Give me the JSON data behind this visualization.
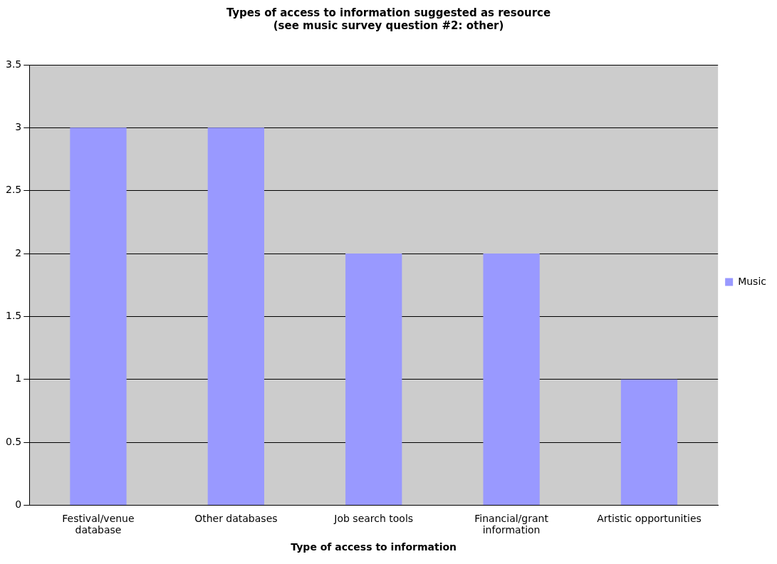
{
  "chart_data": {
    "type": "bar",
    "title": "Types of access to information suggested as resource\n(see music survey question #2: other)",
    "xlabel": "Type of access to information",
    "categories": [
      "Festival/venue database",
      "Other databases",
      "Job search tools",
      "Financial/grant information",
      "Artistic opportunities"
    ],
    "series": [
      {
        "name": "Music",
        "color": "#9999ff",
        "values": [
          3,
          3,
          2,
          2,
          1
        ]
      }
    ],
    "ylim": [
      0,
      3.5
    ],
    "yticks": [
      0,
      0.5,
      1,
      1.5,
      2,
      2.5,
      3,
      3.5
    ],
    "grid": "y",
    "legend": "right"
  }
}
